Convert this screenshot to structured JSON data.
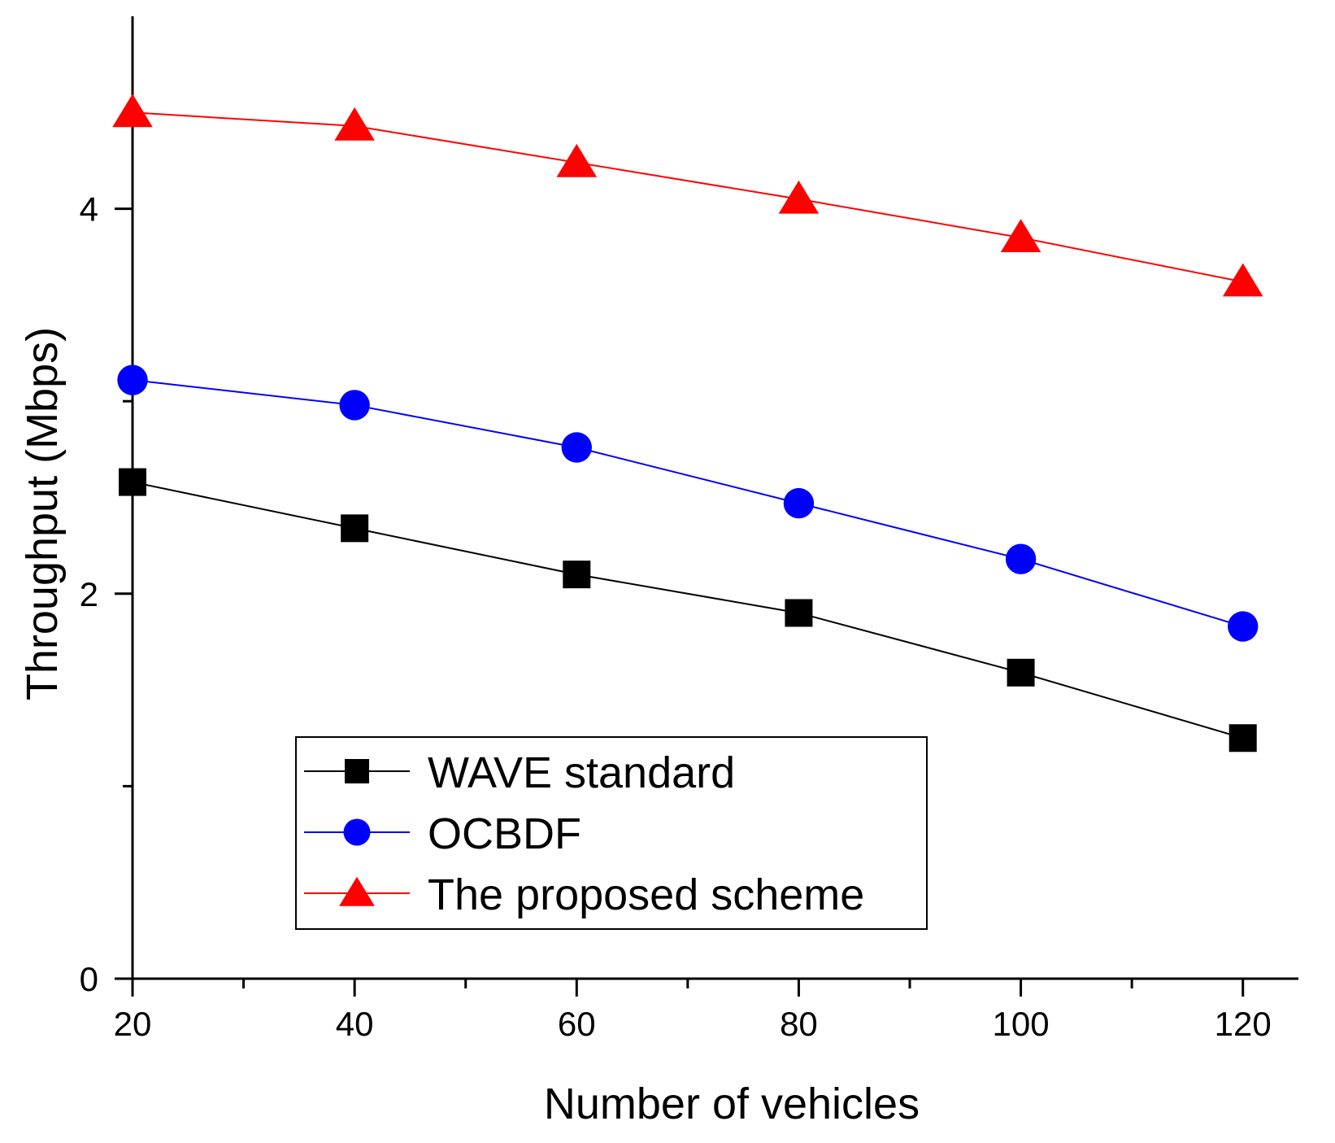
{
  "chart_data": {
    "type": "line",
    "title": "",
    "xlabel": "Number of vehicles",
    "ylabel": "Throughput (Mbps)",
    "xlim": [
      20,
      125
    ],
    "ylim": [
      0,
      5
    ],
    "x_ticks": [
      20,
      40,
      60,
      80,
      100,
      120
    ],
    "x_tick_labels": [
      "20",
      "40",
      "60",
      "80",
      "100",
      "120"
    ],
    "x_minor_ticks": [
      30,
      50,
      70,
      90,
      110
    ],
    "y_ticks": [
      0,
      2,
      4
    ],
    "y_tick_labels": [
      "0",
      "2",
      "4"
    ],
    "y_minor_ticks": [
      1,
      3
    ],
    "x": [
      20,
      40,
      60,
      80,
      100,
      120
    ],
    "series": [
      {
        "name": "WAVE standard",
        "color": "#000000",
        "marker": "square",
        "values": [
          2.58,
          2.34,
          2.1,
          1.9,
          1.59,
          1.25
        ]
      },
      {
        "name": "OCBDF",
        "color": "#0000ff",
        "marker": "circle",
        "values": [
          3.11,
          2.98,
          2.76,
          2.47,
          2.18,
          1.83
        ]
      },
      {
        "name": "The proposed scheme",
        "color": "#ff0000",
        "marker": "triangle",
        "values": [
          4.5,
          4.43,
          4.24,
          4.05,
          3.85,
          3.62
        ]
      }
    ],
    "legend_position": "bottom-center",
    "grid": false
  }
}
